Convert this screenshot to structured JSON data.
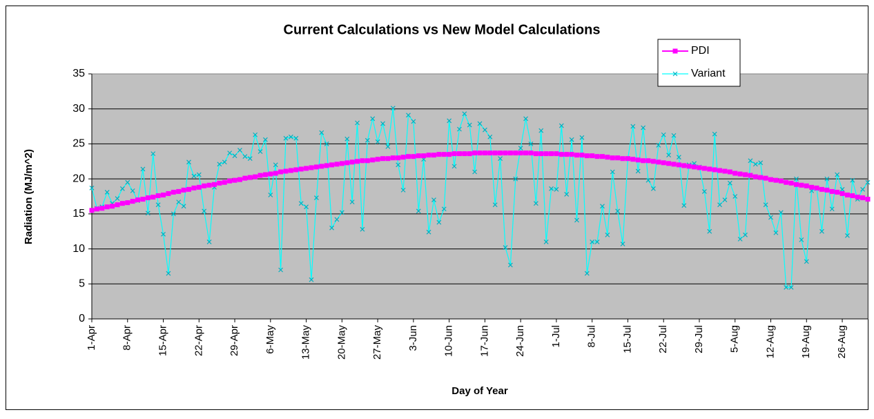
{
  "chart_data": {
    "type": "line",
    "title": "Current Calculations vs New Model Calculations",
    "x_label": "Day of Year",
    "y_label": "Radiation (MJ/m^2)",
    "ylim": [
      0,
      35
    ],
    "yticks": [
      0,
      5,
      10,
      15,
      20,
      25,
      30,
      35
    ],
    "grid": true,
    "legend": "top-right",
    "categories": [
      "1-Apr",
      null,
      null,
      null,
      null,
      null,
      null,
      "8-Apr",
      null,
      null,
      null,
      null,
      null,
      null,
      "15-Apr",
      null,
      null,
      null,
      null,
      null,
      null,
      "22-Apr",
      null,
      null,
      null,
      null,
      null,
      null,
      "29-Apr",
      null,
      null,
      null,
      null,
      null,
      null,
      "6-May",
      null,
      null,
      null,
      null,
      null,
      null,
      "13-May",
      null,
      null,
      null,
      null,
      null,
      null,
      "20-May",
      null,
      null,
      null,
      null,
      null,
      null,
      "27-May",
      null,
      null,
      null,
      null,
      null,
      null,
      "3-Jun",
      null,
      null,
      null,
      null,
      null,
      null,
      "10-Jun",
      null,
      null,
      null,
      null,
      null,
      null,
      "17-Jun",
      null,
      null,
      null,
      null,
      null,
      null,
      "24-Jun",
      null,
      null,
      null,
      null,
      null,
      null,
      "1-Jul",
      null,
      null,
      null,
      null,
      null,
      null,
      "8-Jul",
      null,
      null,
      null,
      null,
      null,
      null,
      "15-Jul",
      null,
      null,
      null,
      null,
      null,
      null,
      "22-Jul",
      null,
      null,
      null,
      null,
      null,
      null,
      "29-Jul",
      null,
      null,
      null,
      null,
      null,
      null,
      "5-Aug",
      null,
      null,
      null,
      null,
      null,
      null,
      "12-Aug",
      null,
      null,
      null,
      null,
      null,
      null,
      "19-Aug",
      null,
      null,
      null,
      null,
      null,
      null,
      "26-Aug",
      null,
      null,
      null,
      null,
      null
    ],
    "series": [
      {
        "name": "PDI",
        "color": "#ff00ff",
        "marker": "square",
        "values": [
          15.5,
          15.7,
          15.8,
          16.0,
          16.1,
          16.3,
          16.5,
          16.6,
          16.8,
          17.0,
          17.1,
          17.3,
          17.4,
          17.6,
          17.7,
          17.9,
          18.1,
          18.2,
          18.4,
          18.5,
          18.7,
          18.8,
          19.0,
          19.1,
          19.2,
          19.4,
          19.5,
          19.7,
          19.8,
          19.9,
          20.1,
          20.2,
          20.3,
          20.5,
          20.6,
          20.7,
          20.8,
          21.0,
          21.1,
          21.2,
          21.3,
          21.4,
          21.5,
          21.6,
          21.7,
          21.8,
          21.9,
          22.0,
          22.1,
          22.2,
          22.3,
          22.4,
          22.5,
          22.6,
          22.6,
          22.7,
          22.8,
          22.9,
          22.9,
          23.0,
          23.0,
          23.1,
          23.2,
          23.2,
          23.3,
          23.3,
          23.4,
          23.4,
          23.5,
          23.5,
          23.5,
          23.6,
          23.6,
          23.6,
          23.6,
          23.7,
          23.7,
          23.7,
          23.7,
          23.7,
          23.7,
          23.7,
          23.7,
          23.7,
          23.7,
          23.7,
          23.7,
          23.6,
          23.6,
          23.6,
          23.6,
          23.6,
          23.5,
          23.5,
          23.5,
          23.4,
          23.4,
          23.3,
          23.3,
          23.2,
          23.2,
          23.1,
          23.0,
          23.0,
          22.9,
          22.9,
          22.8,
          22.7,
          22.6,
          22.6,
          22.5,
          22.4,
          22.3,
          22.2,
          22.1,
          22.0,
          21.9,
          21.8,
          21.7,
          21.6,
          21.5,
          21.4,
          21.3,
          21.2,
          21.1,
          21.0,
          20.8,
          20.7,
          20.6,
          20.5,
          20.3,
          20.2,
          20.1,
          19.9,
          19.8,
          19.7,
          19.5,
          19.4,
          19.2,
          19.1,
          19.0,
          18.8,
          18.7,
          18.5,
          18.4,
          18.2,
          18.1,
          17.9,
          17.7,
          17.6,
          17.4,
          17.3,
          17.1
        ]
      },
      {
        "name": "Variant",
        "color": "#00ffff",
        "marker": "x",
        "values": [
          18.7,
          15.8,
          16.0,
          18.1,
          16.5,
          17.2,
          18.6,
          19.5,
          18.3,
          16.9,
          21.4,
          15.1,
          23.6,
          16.3,
          12.1,
          6.5,
          15.0,
          16.7,
          16.1,
          22.4,
          20.4,
          20.6,
          15.4,
          11.0,
          18.8,
          22.1,
          22.4,
          23.7,
          23.3,
          24.1,
          23.2,
          22.9,
          26.3,
          23.9,
          25.6,
          17.7,
          22.0,
          7.0,
          25.8,
          26.0,
          25.8,
          16.5,
          16.0,
          5.6,
          17.3,
          26.6,
          25.0,
          13.0,
          14.2,
          15.2,
          25.7,
          16.7,
          28.0,
          12.8,
          25.5,
          28.6,
          25.3,
          27.9,
          24.6,
          30.1,
          22.0,
          18.4,
          29.1,
          28.2,
          15.4,
          22.8,
          12.4,
          17.0,
          13.8,
          15.7,
          28.3,
          21.8,
          27.1,
          29.3,
          27.7,
          21.0,
          27.9,
          27.0,
          26.0,
          16.3,
          22.9,
          10.2,
          7.7,
          20.0,
          24.4,
          28.6,
          25.0,
          16.5,
          26.9,
          11.0,
          18.6,
          18.5,
          27.6,
          17.8,
          25.6,
          14.1,
          25.9,
          6.5,
          11.0,
          11.0,
          16.1,
          12.0,
          21.0,
          15.4,
          10.7,
          22.9,
          27.5,
          21.1,
          27.3,
          19.8,
          18.6,
          24.8,
          26.3,
          23.4,
          26.2,
          23.1,
          16.2,
          22.0,
          22.2,
          21.7,
          18.2,
          12.5,
          26.4,
          16.3,
          17.0,
          19.4,
          17.5,
          11.4,
          12.0,
          22.6,
          22.1,
          22.3,
          16.3,
          14.5,
          12.3,
          15.2,
          4.5,
          4.5,
          20.0,
          11.3,
          8.2,
          18.3,
          18.6,
          12.5,
          20.0,
          15.7,
          20.6,
          18.5,
          11.9,
          19.8,
          17.1,
          18.5,
          19.5
        ]
      }
    ]
  }
}
